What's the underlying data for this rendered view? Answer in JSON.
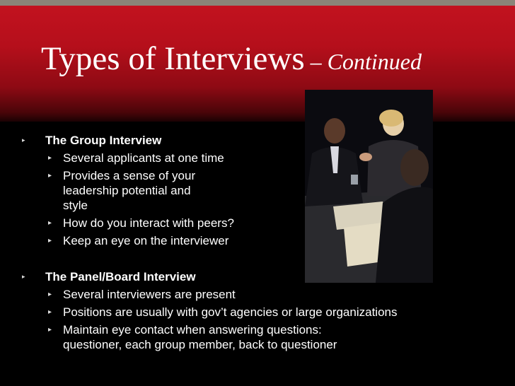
{
  "slide": {
    "title_main": "Types of Interviews",
    "title_dash": " – ",
    "title_suffix": "Continued",
    "sections": [
      {
        "heading": "The Group Interview",
        "items": [
          "Several applicants at one time",
          "Provides a sense of your leadership potential and style",
          "How do you interact with peers?",
          "Keep an eye on the interviewer"
        ]
      },
      {
        "heading": "The Panel/Board Interview",
        "items": [
          "Several interviewers are present",
          "Positions are usually with gov’t agencies or large organizations",
          "Maintain eye contact when answering questions: questioner, each group member, back to questioner"
        ]
      }
    ]
  },
  "icons": {
    "l1_bullet": "triangle-right-small",
    "l2_bullet": "triangle-right"
  },
  "colors": {
    "header_red": "#c2121f",
    "background": "#000000",
    "text": "#ffffff"
  }
}
